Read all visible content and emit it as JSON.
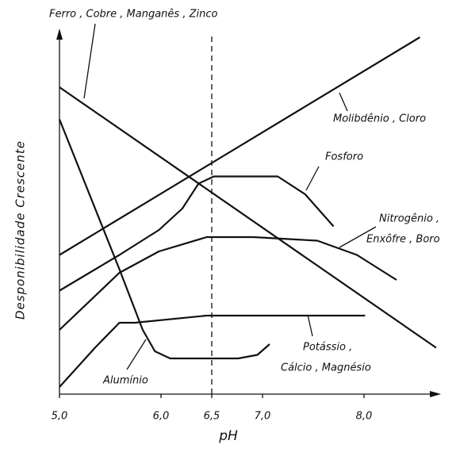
{
  "chart_data": {
    "type": "line",
    "x_label": "pH",
    "y_label": "Desponibilidade  Crescente",
    "xlim": [
      5,
      8.75
    ],
    "xticks": [
      {
        "value": 5,
        "label": "5,0"
      },
      {
        "value": 6,
        "label": "6,0"
      },
      {
        "value": 6.5,
        "label": "6,5"
      },
      {
        "value": 7,
        "label": "7,0"
      },
      {
        "value": 8,
        "label": "8,0"
      }
    ],
    "ylim": [
      0,
      100
    ],
    "vline": 6.5,
    "color": "#111111",
    "series": [
      {
        "labels": [
          "Ferro , Cobre , Manganês , Zinco"
        ],
        "x": [
          5.0,
          8.71
        ],
        "values": [
          86,
          13
        ]
      },
      {
        "labels": [
          "Molibdênio , Cloro"
        ],
        "x": [
          5.0,
          8.55
        ],
        "values": [
          39,
          100
        ]
      },
      {
        "labels": [
          "Fosforo"
        ],
        "x": [
          5.0,
          5.59,
          5.98,
          6.21,
          6.37,
          6.52,
          7.15,
          7.42,
          7.7
        ],
        "values": [
          29,
          39,
          46,
          52,
          59,
          61,
          61,
          56,
          47
        ]
      },
      {
        "labels": [
          "Nitrogênio ,",
          "Enxôfre , Boro"
        ],
        "x": [
          5.0,
          5.59,
          5.98,
          6.45,
          6.91,
          7.54,
          7.93,
          8.32
        ],
        "values": [
          18,
          34,
          40,
          44,
          44,
          43,
          39,
          32
        ]
      },
      {
        "labels": [
          "Potássio ,",
          "Cálcio , Magnésio"
        ],
        "x": [
          5.0,
          5.35,
          5.59,
          5.74,
          6.45,
          7.15,
          8.01
        ],
        "values": [
          2,
          13,
          20,
          20,
          22,
          22,
          22
        ]
      },
      {
        "labels": [
          "Alumínio"
        ],
        "x": [
          5.0,
          5.59,
          5.82,
          5.94,
          6.09,
          6.76,
          6.95,
          7.07
        ],
        "values": [
          77,
          35,
          18,
          12,
          10,
          10,
          11,
          14
        ]
      }
    ]
  }
}
